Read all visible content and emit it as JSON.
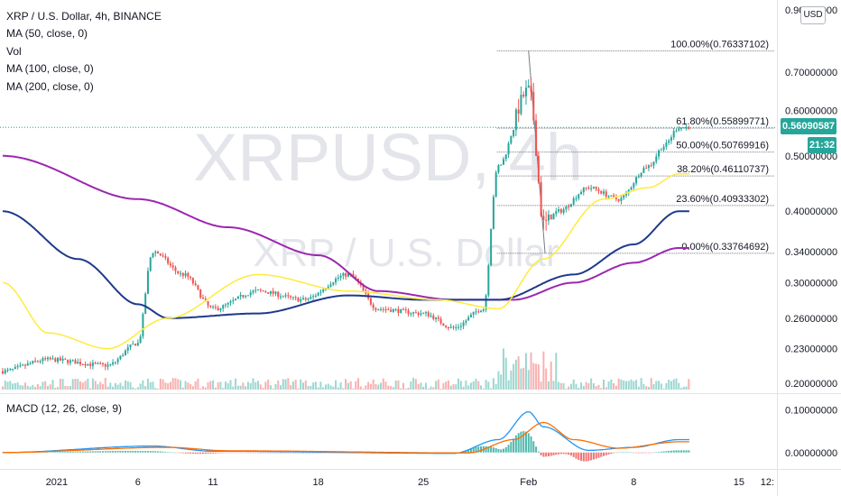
{
  "legend": {
    "title": "XRP / U.S. Dollar, 4h, BINANCE",
    "ma50": "MA (50, close, 0)",
    "vol": "Vol",
    "ma100": "MA (100, close, 0)",
    "ma200": "MA (200, close, 0)"
  },
  "macd_legend": "MACD (12, 26, close, 9)",
  "currency": "USD",
  "last_price": "0.56090587",
  "countdown": "21:32",
  "watermark": {
    "symbol": "XRPUSD, 4h",
    "name": "XRP / U.S. Dollar"
  },
  "colors": {
    "up": "#26a69a",
    "down": "#ef5350",
    "ma50": "#ffeb3b",
    "ma100": "#1e3a8a",
    "ma200": "#9c27b0",
    "macd": "#2196f3",
    "signal": "#ff6d00"
  },
  "price_axis": {
    "ticks": [
      "0.90000000",
      "0.70000000",
      "0.60000000",
      "0.50000000",
      "0.40000000",
      "0.34000000",
      "0.30000000",
      "0.26000000",
      "0.23000000",
      "0.20000000"
    ]
  },
  "macd_axis": {
    "ticks": [
      "0.10000000",
      "0.00000000"
    ]
  },
  "time_axis": {
    "labels": [
      "2021",
      "6",
      "11",
      "18",
      "25",
      "Feb",
      "8",
      "15",
      "12:"
    ]
  },
  "fib_levels": [
    {
      "label": "100.00%(0.76337102)",
      "price": 0.76337102
    },
    {
      "label": "61.80%(0.55899771)",
      "price": 0.55899771
    },
    {
      "label": "50.00%(0.50769916)",
      "price": 0.50769916
    },
    {
      "label": "38.20%(0.46110737)",
      "price": 0.46110737
    },
    {
      "label": "23.60%(0.40933302)",
      "price": 0.40933302
    },
    {
      "label": "0.00%(0.33764692)",
      "price": 0.33764692
    }
  ],
  "chart_data": {
    "type": "candlestick",
    "title": "XRP / U.S. Dollar, 4h, BINANCE",
    "interval": "4h",
    "y_scale": "log",
    "ylim": [
      0.195,
      0.92
    ],
    "x_range": [
      "2020-12-28",
      "2021-02-12"
    ],
    "close_keypoints": [
      {
        "date": "2020-12-28",
        "close": 0.21
      },
      {
        "date": "2020-12-31",
        "close": 0.22
      },
      {
        "date": "2021-01-04",
        "close": 0.215
      },
      {
        "date": "2021-01-06",
        "close": 0.235
      },
      {
        "date": "2021-01-07",
        "close": 0.34
      },
      {
        "date": "2021-01-09",
        "close": 0.31
      },
      {
        "date": "2021-01-11",
        "close": 0.27
      },
      {
        "date": "2021-01-14",
        "close": 0.29
      },
      {
        "date": "2021-01-17",
        "close": 0.28
      },
      {
        "date": "2021-01-20",
        "close": 0.31
      },
      {
        "date": "2021-01-22",
        "close": 0.27
      },
      {
        "date": "2021-01-25",
        "close": 0.265
      },
      {
        "date": "2021-01-27",
        "close": 0.25
      },
      {
        "date": "2021-01-29",
        "close": 0.27
      },
      {
        "date": "2021-01-30",
        "close": 0.48
      },
      {
        "date": "2021-02-01",
        "close": 0.65
      },
      {
        "date": "2021-02-02",
        "close": 0.38
      },
      {
        "date": "2021-02-03",
        "close": 0.4
      },
      {
        "date": "2021-02-05",
        "close": 0.44
      },
      {
        "date": "2021-02-07",
        "close": 0.42
      },
      {
        "date": "2021-02-09",
        "close": 0.48
      },
      {
        "date": "2021-02-10",
        "close": 0.52
      },
      {
        "date": "2021-02-11",
        "close": 0.5609
      }
    ],
    "ma50_keypoints": [
      {
        "date": "2020-12-28",
        "value": 0.3
      },
      {
        "date": "2020-12-31",
        "value": 0.245
      },
      {
        "date": "2021-01-04",
        "value": 0.23
      },
      {
        "date": "2021-01-08",
        "value": 0.26
      },
      {
        "date": "2021-01-14",
        "value": 0.31
      },
      {
        "date": "2021-01-20",
        "value": 0.29
      },
      {
        "date": "2021-01-26",
        "value": 0.28
      },
      {
        "date": "2021-01-30",
        "value": 0.27
      },
      {
        "date": "2021-02-02",
        "value": 0.33
      },
      {
        "date": "2021-02-06",
        "value": 0.42
      },
      {
        "date": "2021-02-09",
        "value": 0.44
      },
      {
        "date": "2021-02-11",
        "value": 0.465
      }
    ],
    "ma100_keypoints": [
      {
        "date": "2020-12-28",
        "value": 0.4
      },
      {
        "date": "2021-01-02",
        "value": 0.33
      },
      {
        "date": "2021-01-06",
        "value": 0.275
      },
      {
        "date": "2021-01-08",
        "value": 0.26
      },
      {
        "date": "2021-01-14",
        "value": 0.265
      },
      {
        "date": "2021-01-20",
        "value": 0.285
      },
      {
        "date": "2021-01-25",
        "value": 0.28
      },
      {
        "date": "2021-01-30",
        "value": 0.28
      },
      {
        "date": "2021-02-04",
        "value": 0.31
      },
      {
        "date": "2021-02-08",
        "value": 0.35
      },
      {
        "date": "2021-02-11",
        "value": 0.4
      }
    ],
    "ma200_keypoints": [
      {
        "date": "2020-12-28",
        "value": 0.5
      },
      {
        "date": "2021-01-06",
        "value": 0.42
      },
      {
        "date": "2021-01-12",
        "value": 0.375
      },
      {
        "date": "2021-01-18",
        "value": 0.335
      },
      {
        "date": "2021-01-22",
        "value": 0.29
      },
      {
        "date": "2021-01-27",
        "value": 0.28
      },
      {
        "date": "2021-01-31",
        "value": 0.28
      },
      {
        "date": "2021-02-04",
        "value": 0.3
      },
      {
        "date": "2021-02-08",
        "value": 0.325
      },
      {
        "date": "2021-02-11",
        "value": 0.345
      }
    ],
    "macd": {
      "ylim": [
        -0.03,
        0.13
      ],
      "macd_keypoints": [
        {
          "date": "2020-12-28",
          "value": 0.0
        },
        {
          "date": "2021-01-07",
          "value": 0.015
        },
        {
          "date": "2021-01-11",
          "value": 0.003
        },
        {
          "date": "2021-01-27",
          "value": -0.002
        },
        {
          "date": "2021-01-30",
          "value": 0.03
        },
        {
          "date": "2021-02-01",
          "value": 0.095
        },
        {
          "date": "2021-02-02",
          "value": 0.06
        },
        {
          "date": "2021-02-05",
          "value": 0.005
        },
        {
          "date": "2021-02-08",
          "value": 0.012
        },
        {
          "date": "2021-02-11",
          "value": 0.03
        }
      ],
      "signal_keypoints": [
        {
          "date": "2020-12-28",
          "value": 0.0
        },
        {
          "date": "2021-01-08",
          "value": 0.012
        },
        {
          "date": "2021-01-12",
          "value": 0.004
        },
        {
          "date": "2021-01-28",
          "value": -0.001
        },
        {
          "date": "2021-01-31",
          "value": 0.03
        },
        {
          "date": "2021-02-02",
          "value": 0.07
        },
        {
          "date": "2021-02-04",
          "value": 0.03
        },
        {
          "date": "2021-02-07",
          "value": 0.01
        },
        {
          "date": "2021-02-11",
          "value": 0.025
        }
      ]
    }
  }
}
